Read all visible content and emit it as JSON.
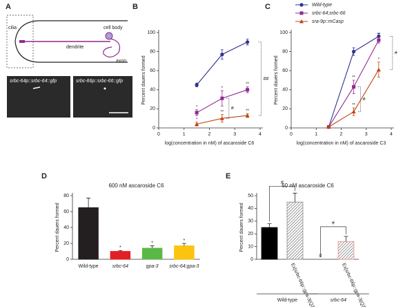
{
  "panel_a": {
    "label": "A",
    "parts": [
      "cilia",
      "dendrite",
      "cell body",
      "axon"
    ],
    "images": [
      "srbc-64p::srbc-64::gfp",
      "srbc-66p::srbc-66::gfp"
    ]
  },
  "chart_data": [
    {
      "type": "line",
      "panel": "B",
      "xlabel": "log(concentration in nM) of ascaroside C6",
      "ylabel": "Percent dauers formed",
      "x": [
        1.5,
        2.5,
        3.5
      ],
      "xlim": [
        0,
        4
      ],
      "xticks": [
        0,
        1,
        2,
        3,
        4
      ],
      "ylim": [
        0,
        100
      ],
      "yticks": [
        0,
        20,
        40,
        60,
        80,
        100
      ],
      "series": [
        {
          "color": "#2e3192",
          "marker": "circle",
          "values": [
            45,
            77,
            90
          ],
          "errors": [
            2,
            5,
            3
          ]
        },
        {
          "color": "#92278f",
          "marker": "square",
          "values": [
            16,
            31,
            40
          ],
          "errors": [
            3,
            8,
            3
          ],
          "point_labels": [
            "*",
            "*",
            "**"
          ]
        },
        {
          "color": "#c1440e",
          "marker": "triangle",
          "values": [
            4,
            10,
            13
          ],
          "errors": [
            2,
            4,
            2
          ],
          "point_labels": [
            "*",
            "**",
            "**"
          ]
        }
      ],
      "annotations": [
        "#",
        "##"
      ]
    },
    {
      "type": "line",
      "panel": "C",
      "xlabel": "log(concentration in nM) of ascaroside C3",
      "ylabel": "Percent dauers formed",
      "x": [
        1.5,
        2.5,
        3.5
      ],
      "xlim": [
        0,
        4
      ],
      "xticks": [
        0,
        1,
        2,
        3,
        4
      ],
      "ylim": [
        0,
        100
      ],
      "yticks": [
        0,
        20,
        40,
        60,
        80,
        100
      ],
      "series": [
        {
          "name": "Wild-type",
          "color": "#2e3192",
          "marker": "circle",
          "values": [
            1,
            80,
            96
          ],
          "errors": [
            1,
            4,
            3
          ]
        },
        {
          "name": "srbc-64;srbc-66",
          "color": "#92278f",
          "marker": "square",
          "values": [
            1,
            43,
            92
          ],
          "errors": [
            1,
            7,
            3
          ],
          "point_labels": [
            null,
            "**",
            "**"
          ]
        },
        {
          "name": "sra-9p::mCasp",
          "color": "#c1440e",
          "marker": "triangle",
          "values": [
            1,
            17,
            61
          ],
          "errors": [
            1,
            4,
            8
          ],
          "point_labels": [
            null,
            "**",
            "*"
          ]
        }
      ],
      "annotations": [
        "#",
        "#"
      ]
    },
    {
      "type": "bar",
      "panel": "D",
      "title": "600 nM ascaroside C6",
      "ylabel": "Percent dauers formed",
      "categories": [
        "Wild-type",
        "srbc-64",
        "gpa-3",
        "srbc-64;gpa-3"
      ],
      "values": [
        65,
        10,
        14,
        17
      ],
      "errors": [
        12,
        1,
        3,
        3
      ],
      "colors": [
        "#231f20",
        "#e31e24",
        "#5bb846",
        "#fcc30f"
      ],
      "hatched": [
        false,
        false,
        false,
        false
      ],
      "point_labels": [
        null,
        "*",
        "*",
        "*"
      ],
      "ylim": [
        0,
        80
      ],
      "yticks": [
        0,
        20,
        40,
        60,
        80
      ]
    },
    {
      "type": "bar",
      "panel": "E",
      "title": "60 nM ascaroside C6",
      "ylabel": "Percent dauers formed",
      "categories": [
        null,
        "Ex[srbc-66p::gpa-3(Q205L)]",
        null,
        "Ex[srbc-66p::gpa-3(Q205L)]"
      ],
      "values": [
        25,
        45,
        0,
        14
      ],
      "errors": [
        3,
        7,
        0,
        4
      ],
      "colors": [
        "#000000",
        "#8c8c8c",
        "#000000",
        "#f08c8c"
      ],
      "hatched": [
        false,
        true,
        false,
        true
      ],
      "groups": [
        "Wild-type",
        "srbc-64"
      ],
      "annotations": [
        "#",
        "#"
      ],
      "ylim": [
        0,
        50
      ],
      "yticks": [
        0,
        10,
        20,
        30,
        40,
        50
      ]
    }
  ]
}
